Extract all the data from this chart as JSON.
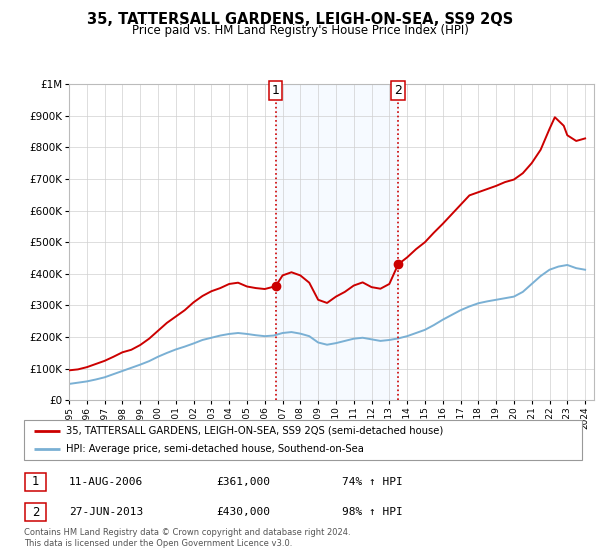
{
  "title": "35, TATTERSALL GARDENS, LEIGH-ON-SEA, SS9 2QS",
  "subtitle": "Price paid vs. HM Land Registry's House Price Index (HPI)",
  "legend_line1": "35, TATTERSALL GARDENS, LEIGH-ON-SEA, SS9 2QS (semi-detached house)",
  "legend_line2": "HPI: Average price, semi-detached house, Southend-on-Sea",
  "red_color": "#cc0000",
  "blue_color": "#7ab0d4",
  "shaded_color": "#ddeeff",
  "marker1_date": 2006.614,
  "marker1_value": 361000,
  "marker2_date": 2013.495,
  "marker2_value": 430000,
  "marker1_text": "11-AUG-2006",
  "marker1_price": "£361,000",
  "marker1_hpi": "74% ↑ HPI",
  "marker2_text": "27-JUN-2013",
  "marker2_price": "£430,000",
  "marker2_hpi": "98% ↑ HPI",
  "footer": "Contains HM Land Registry data © Crown copyright and database right 2024.\nThis data is licensed under the Open Government Licence v3.0.",
  "ylim_max": 1000000,
  "xmin": 1995.0,
  "xmax": 2024.5,
  "red_x": [
    1995.0,
    1995.5,
    1996.0,
    1996.5,
    1997.0,
    1997.5,
    1998.0,
    1998.5,
    1999.0,
    1999.5,
    2000.0,
    2000.5,
    2001.0,
    2001.5,
    2002.0,
    2002.5,
    2003.0,
    2003.5,
    2004.0,
    2004.5,
    2005.0,
    2005.5,
    2006.0,
    2006.614,
    2007.0,
    2007.5,
    2008.0,
    2008.5,
    2009.0,
    2009.5,
    2010.0,
    2010.5,
    2011.0,
    2011.5,
    2012.0,
    2012.5,
    2013.0,
    2013.495,
    2014.0,
    2014.5,
    2015.0,
    2015.5,
    2016.0,
    2016.5,
    2017.0,
    2017.5,
    2018.0,
    2018.5,
    2019.0,
    2019.5,
    2020.0,
    2020.5,
    2021.0,
    2021.5,
    2022.0,
    2022.3,
    2022.8,
    2023.0,
    2023.5,
    2024.0
  ],
  "red_y": [
    95000,
    98000,
    105000,
    115000,
    125000,
    138000,
    152000,
    160000,
    175000,
    195000,
    220000,
    245000,
    265000,
    285000,
    310000,
    330000,
    345000,
    355000,
    368000,
    372000,
    360000,
    355000,
    352000,
    361000,
    395000,
    405000,
    395000,
    372000,
    318000,
    308000,
    328000,
    343000,
    363000,
    373000,
    358000,
    353000,
    368000,
    430000,
    452000,
    478000,
    500000,
    530000,
    558000,
    588000,
    618000,
    648000,
    658000,
    668000,
    678000,
    690000,
    698000,
    718000,
    750000,
    792000,
    858000,
    895000,
    868000,
    838000,
    820000,
    828000
  ],
  "blue_x": [
    1995.0,
    1995.5,
    1996.0,
    1996.5,
    1997.0,
    1997.5,
    1998.0,
    1998.5,
    1999.0,
    1999.5,
    2000.0,
    2000.5,
    2001.0,
    2001.5,
    2002.0,
    2002.5,
    2003.0,
    2003.5,
    2004.0,
    2004.5,
    2005.0,
    2005.5,
    2006.0,
    2006.5,
    2007.0,
    2007.5,
    2008.0,
    2008.5,
    2009.0,
    2009.5,
    2010.0,
    2010.5,
    2011.0,
    2011.5,
    2012.0,
    2012.5,
    2013.0,
    2013.5,
    2014.0,
    2014.5,
    2015.0,
    2015.5,
    2016.0,
    2016.5,
    2017.0,
    2017.5,
    2018.0,
    2018.5,
    2019.0,
    2019.5,
    2020.0,
    2020.5,
    2021.0,
    2021.5,
    2022.0,
    2022.5,
    2023.0,
    2023.5,
    2024.0
  ],
  "blue_y": [
    52000,
    56000,
    60000,
    66000,
    73000,
    83000,
    93000,
    103000,
    113000,
    124000,
    138000,
    150000,
    161000,
    170000,
    180000,
    191000,
    198000,
    205000,
    210000,
    213000,
    210000,
    206000,
    203000,
    205000,
    213000,
    216000,
    211000,
    203000,
    183000,
    176000,
    181000,
    188000,
    195000,
    198000,
    193000,
    188000,
    191000,
    196000,
    203000,
    213000,
    223000,
    238000,
    255000,
    270000,
    285000,
    297000,
    307000,
    313000,
    318000,
    323000,
    328000,
    343000,
    368000,
    393000,
    413000,
    423000,
    428000,
    418000,
    413000
  ]
}
